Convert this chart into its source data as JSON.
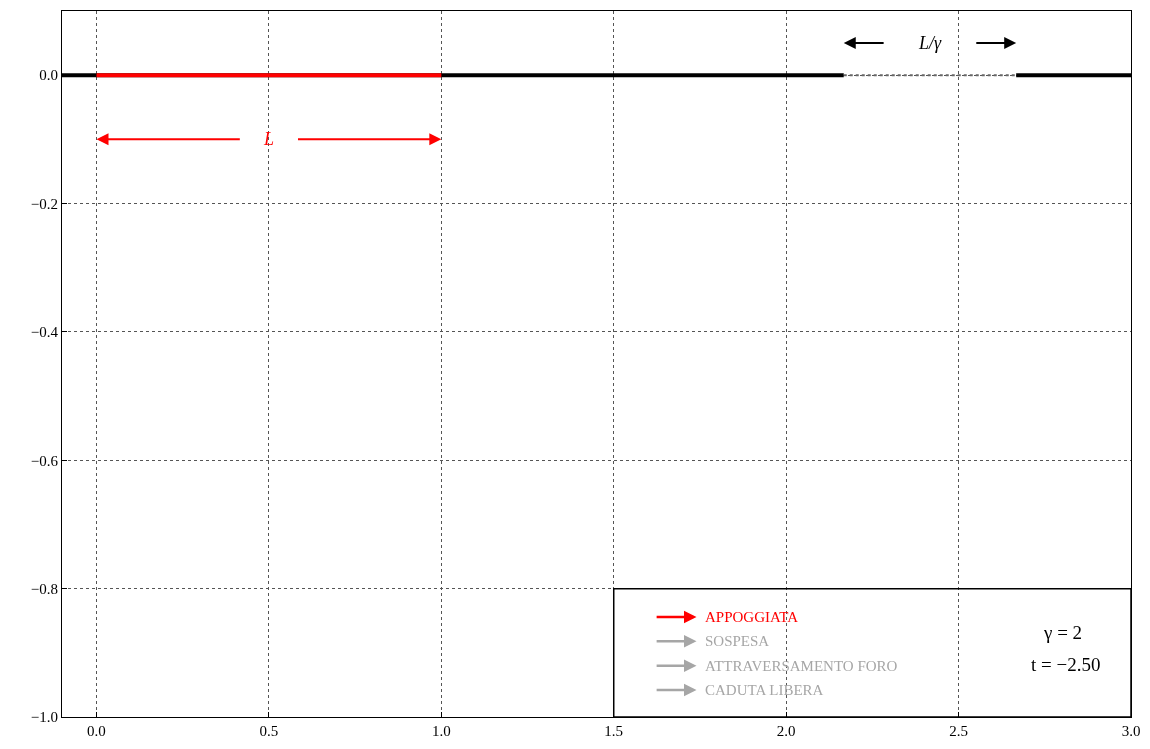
{
  "chart_data": {
    "type": "line",
    "series": [
      {
        "color": "#000000",
        "x": [
          -0.1,
          2.167,
          2.417,
          2.667,
          3.0
        ],
        "values": [
          0,
          0,
          null,
          0,
          0
        ]
      },
      {
        "color": "#666666",
        "x": [
          2.167,
          2.667
        ],
        "values": [
          0,
          0
        ],
        "line_style": "dotted"
      },
      {
        "color": "#ff0000",
        "x": [
          0,
          1
        ],
        "values": [
          0,
          0
        ]
      }
    ],
    "xlim": [
      -0.1,
      3.0
    ],
    "xticks": [
      {
        "value": 0,
        "label": "0.0"
      },
      {
        "value": 0.5,
        "label": "0.5"
      },
      {
        "value": 1,
        "label": "1.0"
      },
      {
        "value": 1.5,
        "label": "1.5"
      },
      {
        "value": 2,
        "label": "2.0"
      },
      {
        "value": 2.5,
        "label": "2.5"
      },
      {
        "value": 3,
        "label": "3.0"
      }
    ],
    "ylim": [
      -1.0,
      0.1
    ],
    "yticks": [
      {
        "value": 0,
        "label": "0.0"
      },
      {
        "value": -0.2,
        "label": "−0.2"
      },
      {
        "value": -0.4,
        "label": "−0.4"
      },
      {
        "value": -0.6,
        "label": "−0.6"
      },
      {
        "value": -0.8,
        "label": "−0.8"
      },
      {
        "value": -1.0,
        "label": "−1.0"
      }
    ],
    "grid": true,
    "annotations": [
      "L",
      "L/γ",
      "APPOGGIATA",
      "SOSPESA",
      "ATTRAVERSAMENTO FORO",
      "CADUTA LIBERA",
      "γ = 2",
      "t = −2.50"
    ]
  }
}
